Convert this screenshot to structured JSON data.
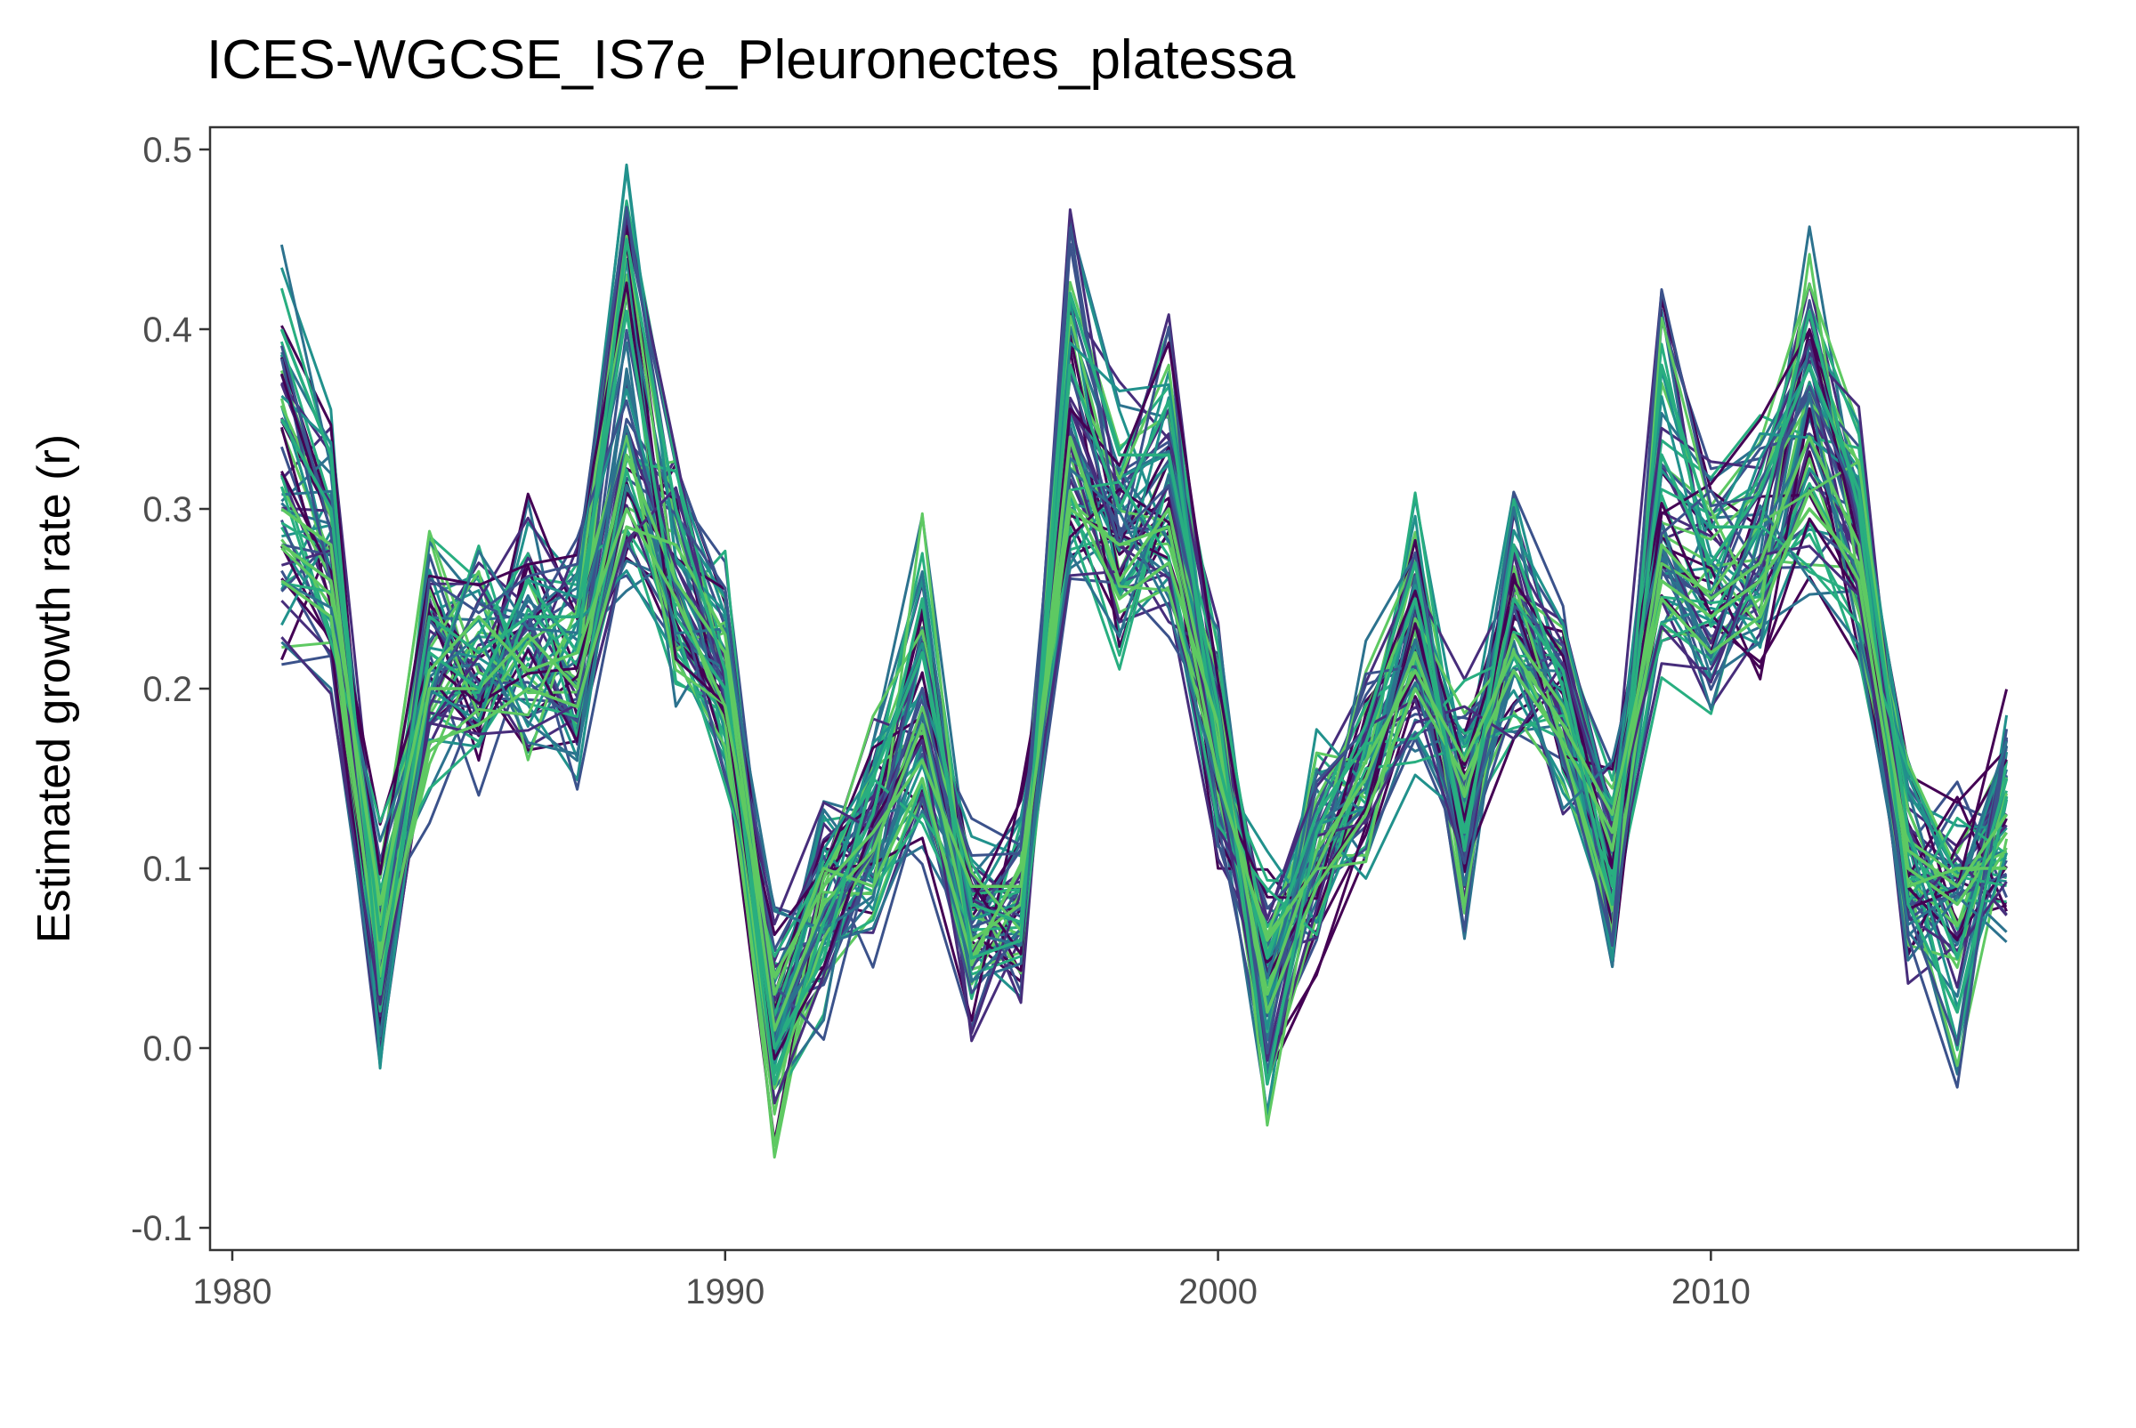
{
  "chart_data": {
    "type": "line",
    "title": "ICES-WGCSE_IS7e_Pleuronectes_platessa",
    "xlabel": "",
    "ylabel": "Estimated growth rate (r)",
    "xlim": [
      1980,
      2017
    ],
    "ylim": [
      -0.1,
      0.5
    ],
    "xticks": [
      "1980",
      "1990",
      "2000",
      "2010"
    ],
    "yticks": [
      "-0.1",
      "0.0",
      "0.1",
      "0.2",
      "0.3",
      "0.4",
      "0.5"
    ],
    "grid": false,
    "legend": "none",
    "palette": [
      "#440154",
      "#472d7b",
      "#3b528b",
      "#2c728e",
      "#21918c",
      "#28ae80",
      "#5ec962"
    ],
    "ensemble_size": 60,
    "ensemble_spread": 0.05,
    "years": [
      1981,
      1982,
      1983,
      1984,
      1985,
      1986,
      1987,
      1988,
      1989,
      1990,
      1991,
      1992,
      1993,
      1994,
      1995,
      1996,
      1997,
      1998,
      1999,
      2000,
      2001,
      2002,
      2003,
      2004,
      2005,
      2006,
      2007,
      2008,
      2009,
      2010,
      2011,
      2012,
      2013,
      2014,
      2015,
      2016
    ],
    "series": [
      {
        "values": [
          0.3,
          0.28,
          0.05,
          0.2,
          0.2,
          0.23,
          0.2,
          0.33,
          0.26,
          0.22,
          0.01,
          0.08,
          0.11,
          0.18,
          0.06,
          0.08,
          0.34,
          0.26,
          0.3,
          0.17,
          0.03,
          0.11,
          0.15,
          0.22,
          0.14,
          0.23,
          0.19,
          0.11,
          0.28,
          0.25,
          0.27,
          0.34,
          0.28,
          0.1,
          0.08,
          0.12
        ]
      },
      {
        "values": [
          0.35,
          0.3,
          0.06,
          0.24,
          0.22,
          0.24,
          0.24,
          0.41,
          0.24,
          0.2,
          0.0,
          0.05,
          0.15,
          0.22,
          0.08,
          0.07,
          0.38,
          0.3,
          0.36,
          0.16,
          0.05,
          0.13,
          0.17,
          0.25,
          0.12,
          0.25,
          0.21,
          0.09,
          0.33,
          0.27,
          0.31,
          0.38,
          0.31,
          0.12,
          0.05,
          0.15
        ]
      },
      {
        "values": [
          0.26,
          0.24,
          0.04,
          0.17,
          0.18,
          0.2,
          0.19,
          0.29,
          0.28,
          0.23,
          0.03,
          0.1,
          0.09,
          0.15,
          0.05,
          0.1,
          0.31,
          0.25,
          0.27,
          0.18,
          0.02,
          0.09,
          0.13,
          0.2,
          0.15,
          0.21,
          0.17,
          0.12,
          0.25,
          0.22,
          0.24,
          0.31,
          0.26,
          0.09,
          0.1,
          0.1
        ]
      },
      {
        "values": [
          0.4,
          0.33,
          0.03,
          0.22,
          0.2,
          0.26,
          0.22,
          0.45,
          0.3,
          0.21,
          -0.02,
          0.07,
          0.13,
          0.25,
          0.05,
          0.06,
          0.42,
          0.33,
          0.33,
          0.19,
          -0.02,
          0.12,
          0.18,
          0.27,
          0.11,
          0.28,
          0.2,
          0.08,
          0.38,
          0.29,
          0.29,
          0.41,
          0.3,
          0.08,
          0.02,
          0.14
        ]
      },
      {
        "values": [
          0.28,
          0.26,
          0.08,
          0.21,
          0.24,
          0.21,
          0.22,
          0.3,
          0.25,
          0.19,
          0.04,
          0.09,
          0.12,
          0.16,
          0.09,
          0.09,
          0.3,
          0.28,
          0.29,
          0.15,
          0.06,
          0.1,
          0.16,
          0.21,
          0.16,
          0.22,
          0.18,
          0.13,
          0.26,
          0.24,
          0.26,
          0.3,
          0.27,
          0.11,
          0.09,
          0.13
        ]
      }
    ]
  }
}
